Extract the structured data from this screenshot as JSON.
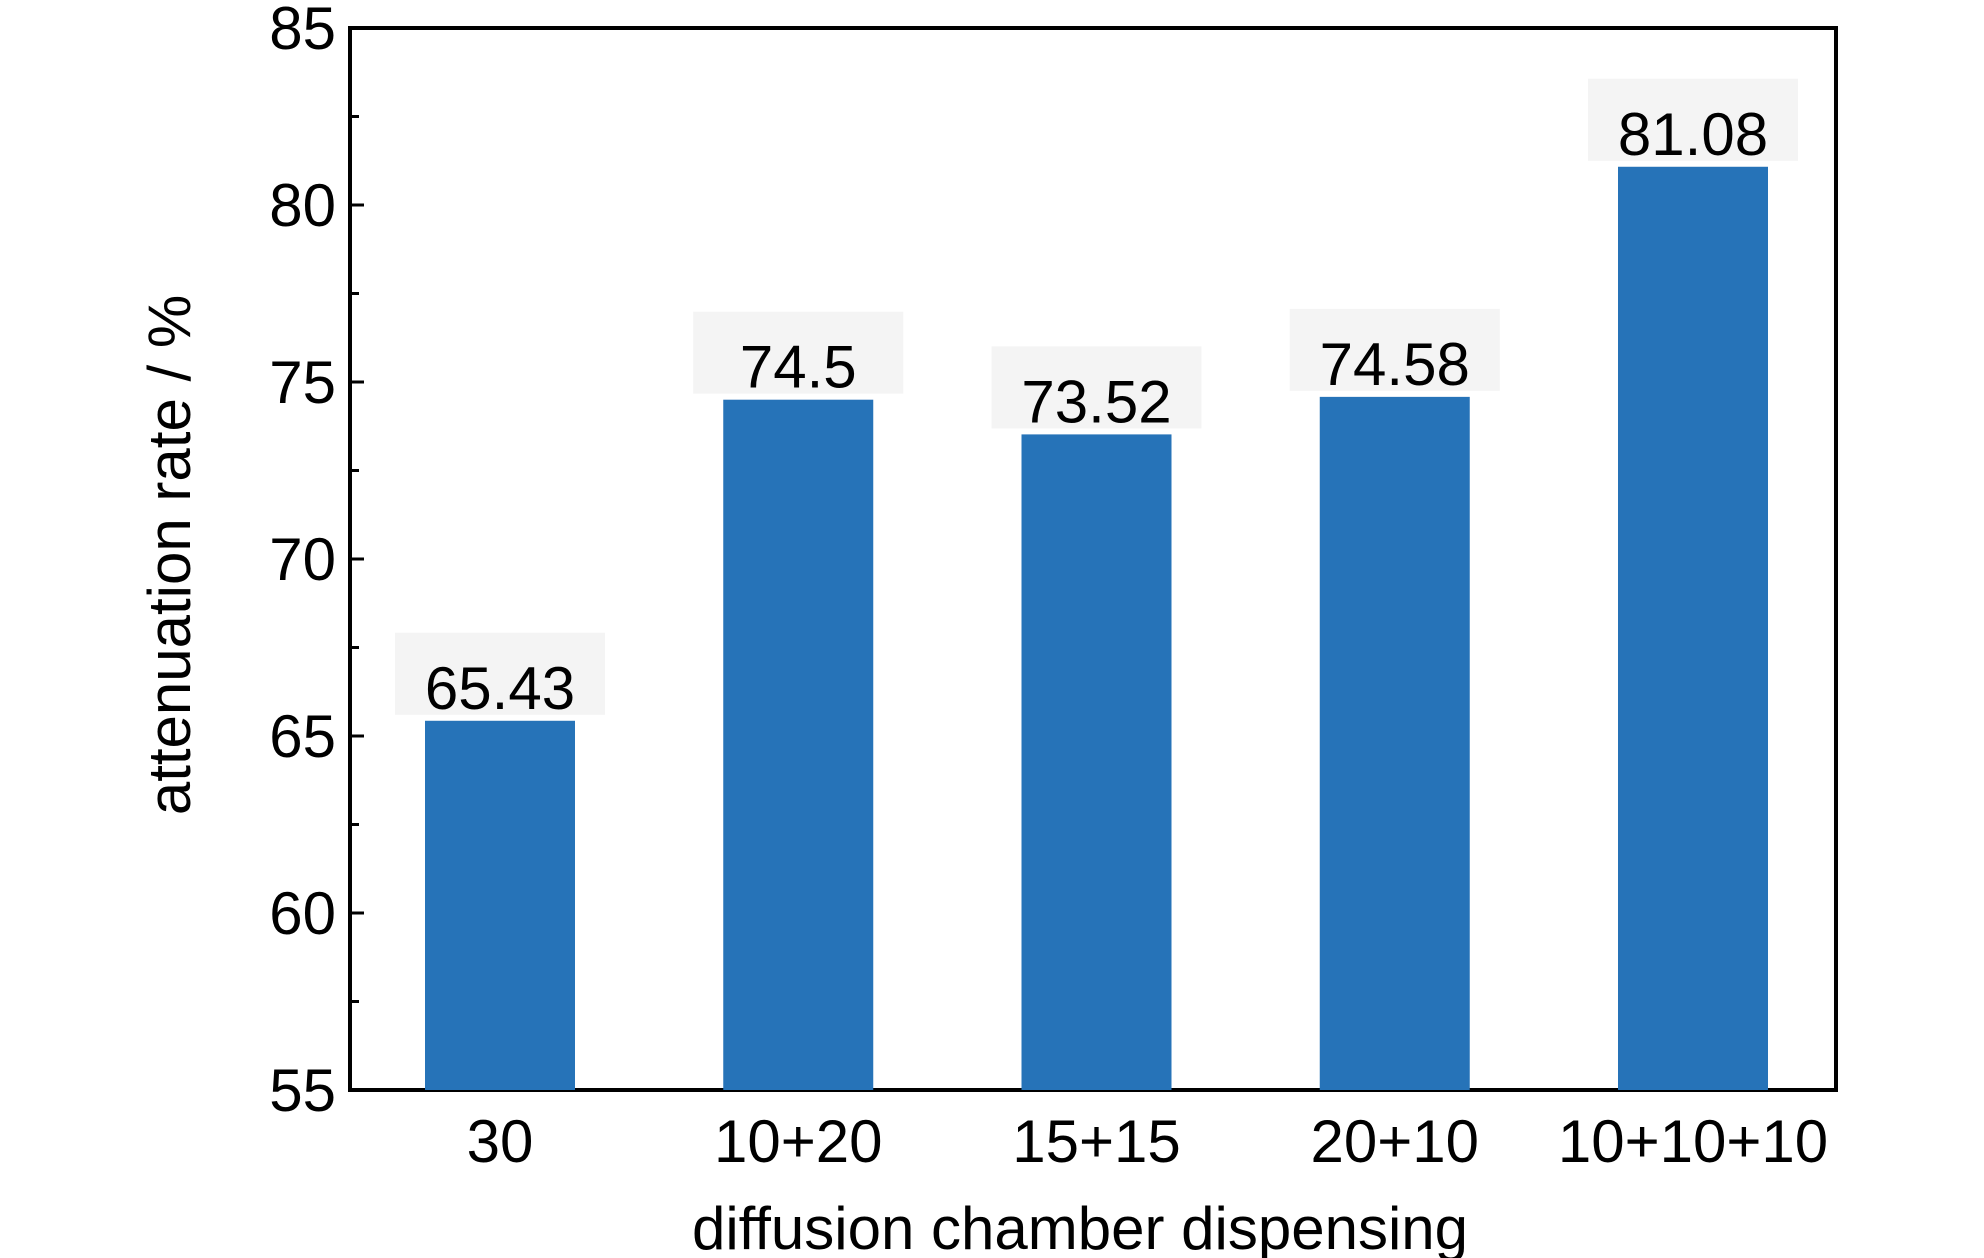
{
  "chart_data": {
    "type": "bar",
    "title": "",
    "xlabel": "diffusion chamber dispensing",
    "ylabel": "attenuation rate / %",
    "categories": [
      "30",
      "10+20",
      "15+15",
      "20+10",
      "10+10+10"
    ],
    "values": [
      65.43,
      74.5,
      73.52,
      74.58,
      81.08
    ],
    "value_labels": [
      "65.43",
      "74.5",
      "73.52",
      "74.58",
      "81.08"
    ],
    "ylim": [
      55,
      85
    ],
    "yticks": [
      55,
      60,
      65,
      70,
      75,
      80,
      85
    ],
    "ytick_labels": [
      "55",
      "60",
      "65",
      "70",
      "75",
      "80",
      "85"
    ],
    "minor_tick_step": 2.5,
    "grid": false,
    "legend": "none",
    "bar_color": "#2673b8",
    "value_label_background": "#f4f4f4"
  }
}
